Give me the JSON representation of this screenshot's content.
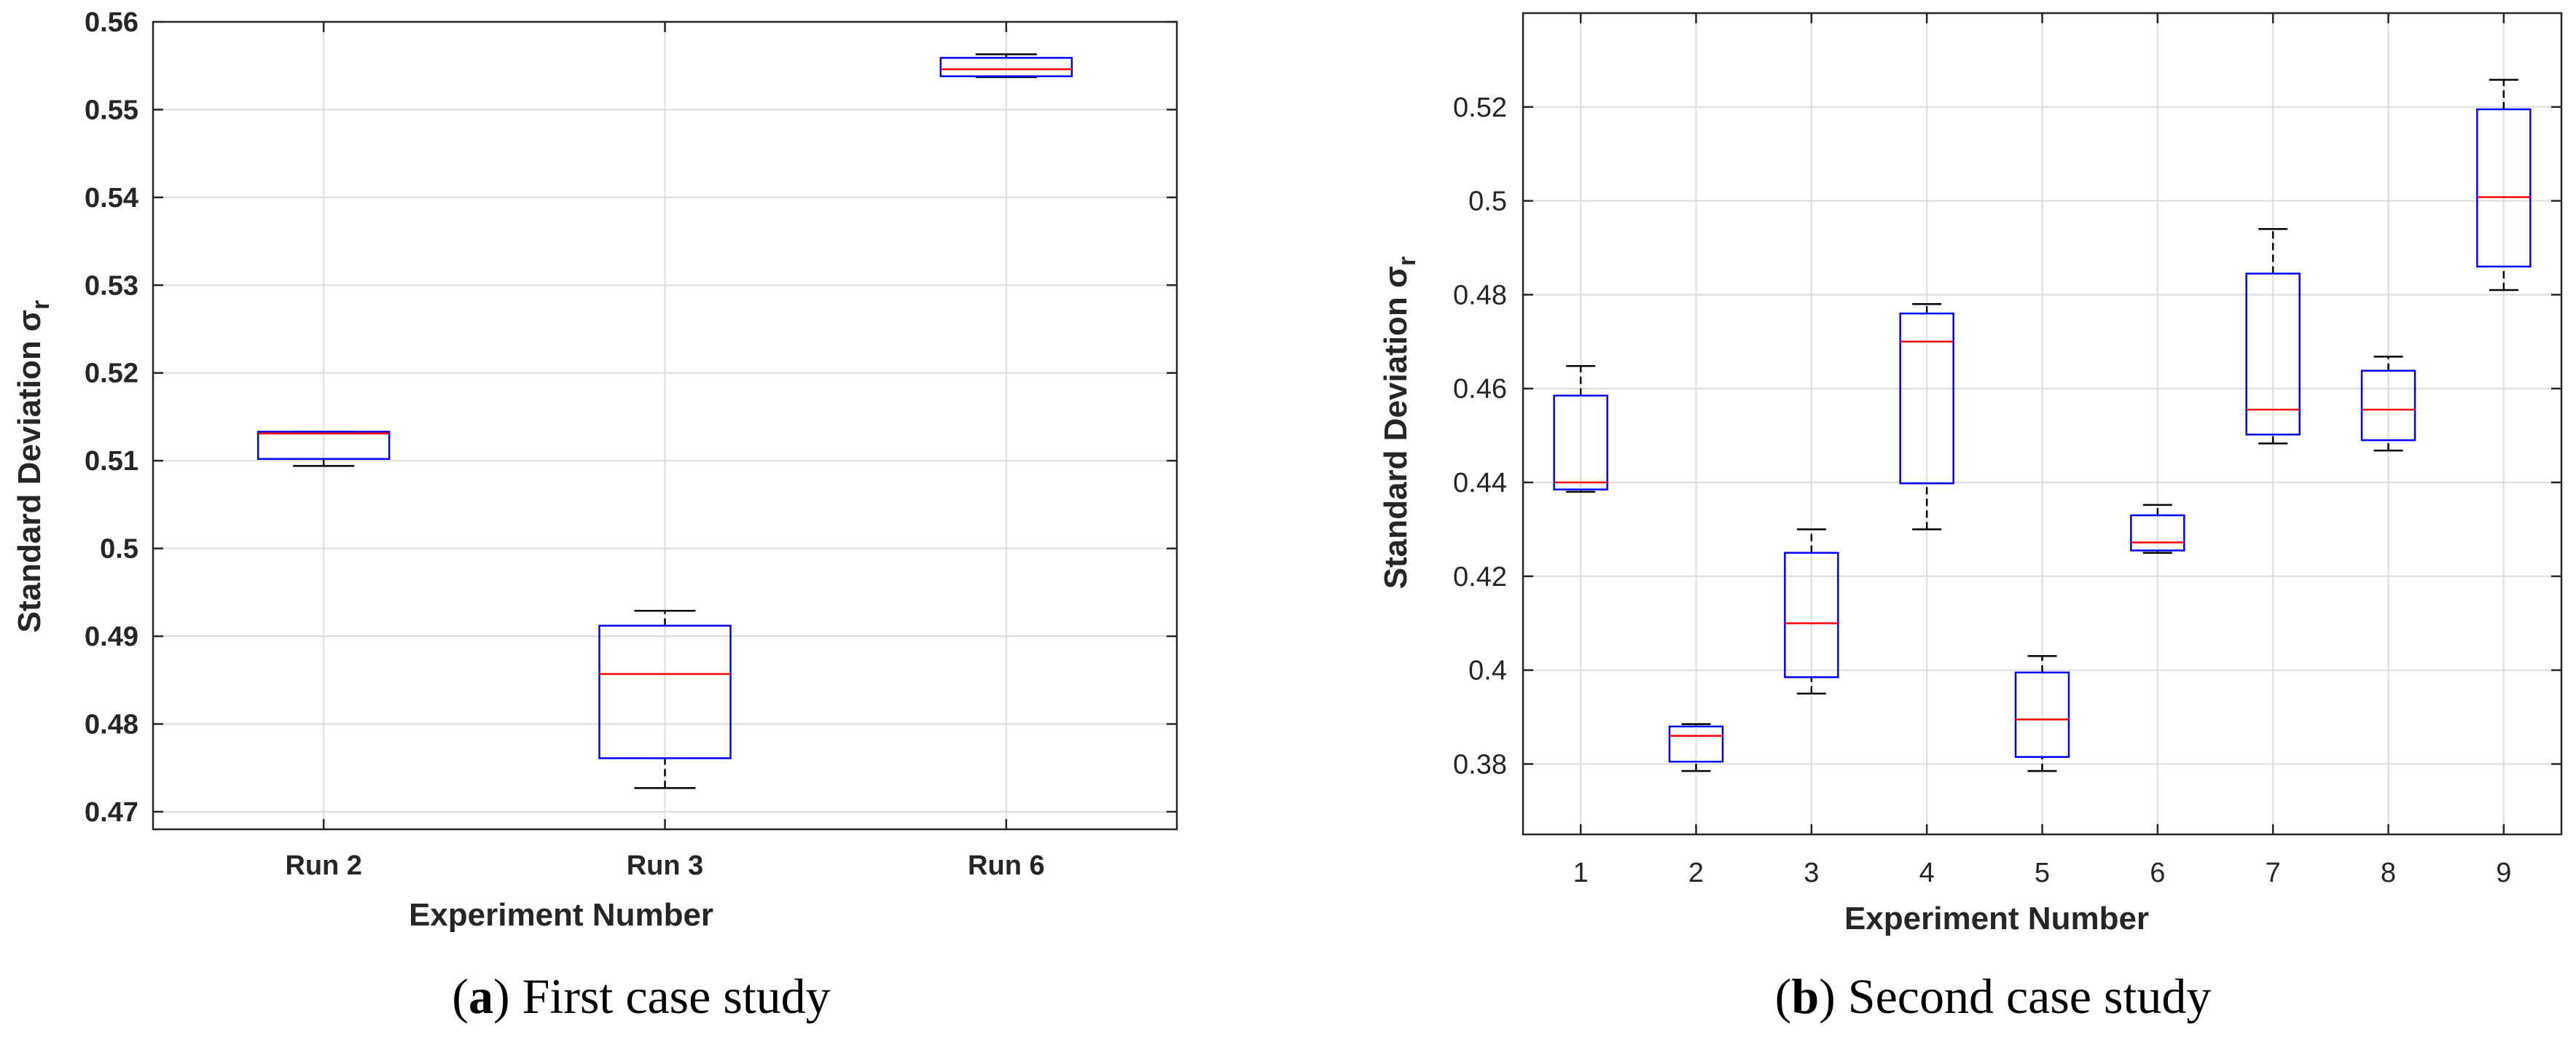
{
  "chart_data": [
    {
      "type": "boxplot",
      "xlabel": "Experiment Number",
      "ylabel": "Standard Deviation σ",
      "ylabel_sub": "r",
      "ylim": [
        0.468,
        0.56
      ],
      "yticks": [
        0.47,
        0.48,
        0.49,
        0.5,
        0.51,
        0.52,
        0.53,
        0.54,
        0.55,
        0.56
      ],
      "ytick_labels": [
        "0.47",
        "0.48",
        "0.49",
        "0.5",
        "0.51",
        "0.52",
        "0.53",
        "0.54",
        "0.55",
        "0.56"
      ],
      "grid": true,
      "categories": [
        "Run 2",
        "Run 3",
        "Run 6"
      ],
      "boxes": [
        {
          "whislo": 0.5094,
          "q1": 0.5102,
          "med": 0.5131,
          "q3": 0.5133,
          "whishi": 0.5133
        },
        {
          "whislo": 0.4727,
          "q1": 0.4761,
          "med": 0.4857,
          "q3": 0.4912,
          "whishi": 0.4929
        },
        {
          "whislo": 0.5537,
          "q1": 0.5538,
          "med": 0.5546,
          "q3": 0.5559,
          "whishi": 0.5563
        }
      ],
      "caption_label": "a",
      "caption_text": "First case study",
      "caption_open": "(",
      "caption_close": ") "
    },
    {
      "type": "boxplot",
      "xlabel": "Experiment Number",
      "ylabel": "Standard Deviation σ",
      "ylabel_sub": "r",
      "ylim": [
        0.365,
        0.54
      ],
      "yticks": [
        0.38,
        0.4,
        0.42,
        0.44,
        0.46,
        0.48,
        0.5,
        0.52
      ],
      "ytick_labels": [
        "0.38",
        "0.4",
        "0.42",
        "0.44",
        "0.46",
        "0.48",
        "0.5",
        "0.52"
      ],
      "grid": true,
      "categories": [
        "1",
        "2",
        "3",
        "4",
        "5",
        "6",
        "7",
        "8",
        "9"
      ],
      "boxes": [
        {
          "whislo": 0.438,
          "q1": 0.4385,
          "med": 0.44,
          "q3": 0.4585,
          "whishi": 0.4648
        },
        {
          "whislo": 0.3785,
          "q1": 0.3805,
          "med": 0.386,
          "q3": 0.388,
          "whishi": 0.3885
        },
        {
          "whislo": 0.395,
          "q1": 0.3985,
          "med": 0.41,
          "q3": 0.425,
          "whishi": 0.43
        },
        {
          "whislo": 0.43,
          "q1": 0.4398,
          "med": 0.47,
          "q3": 0.476,
          "whishi": 0.478
        },
        {
          "whislo": 0.3785,
          "q1": 0.3815,
          "med": 0.3895,
          "q3": 0.3995,
          "whishi": 0.403
        },
        {
          "whislo": 0.425,
          "q1": 0.4255,
          "med": 0.4272,
          "q3": 0.433,
          "whishi": 0.4352
        },
        {
          "whislo": 0.4483,
          "q1": 0.4502,
          "med": 0.4555,
          "q3": 0.4845,
          "whishi": 0.494
        },
        {
          "whislo": 0.4468,
          "q1": 0.449,
          "med": 0.4555,
          "q3": 0.4638,
          "whishi": 0.4668
        },
        {
          "whislo": 0.481,
          "q1": 0.486,
          "med": 0.5008,
          "q3": 0.5195,
          "whishi": 0.5258
        }
      ],
      "caption_label": "b",
      "caption_text": "Second case study",
      "caption_open": "(",
      "caption_close": ") "
    }
  ],
  "colors": {
    "box": "#0000ff",
    "median": "#ff0000",
    "whisker": "#000000",
    "grid": "#dcdcdc",
    "axis": "#262626"
  }
}
